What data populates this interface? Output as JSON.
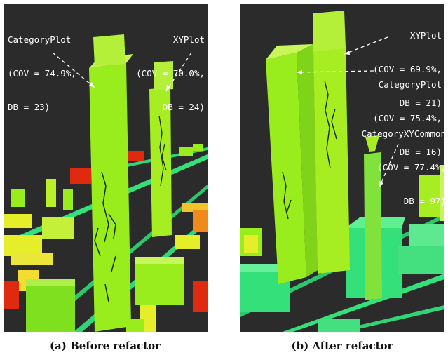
{
  "panel_a": {
    "caption": "(a) Before refactor",
    "callouts": [
      {
        "name": "CategoryPlot",
        "cov": "(COV = 74.9%,",
        "db": "DB = 23)"
      },
      {
        "name": "XYPlot",
        "cov": "(COV = 70.0%,",
        "db": "DB = 24)"
      }
    ]
  },
  "panel_b": {
    "caption": "(b) After refactor",
    "callouts": [
      {
        "name": "XYPlot",
        "cov": "(COV = 69.9%,",
        "db": "DB = 21)"
      },
      {
        "name": "CategoryPlot",
        "cov": "(COV = 75.4%,",
        "db": "DB = 16)"
      },
      {
        "name": "CategoryXYCommon",
        "cov": "(COV = 77.4%,",
        "db": "DB = 97)"
      }
    ]
  },
  "colors": {
    "background": "#2b2b2b",
    "street": "#33e07a",
    "building_green": "#9aed1c",
    "building_yellow": "#e6ee2a",
    "building_orange": "#f08a1a",
    "building_red": "#e02a10"
  }
}
